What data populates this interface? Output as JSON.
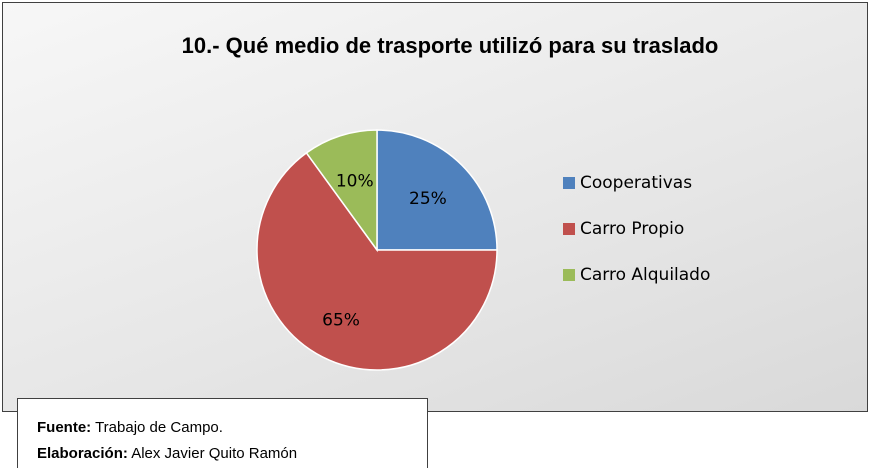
{
  "chart_data": {
    "type": "pie",
    "title": "10.- Qué medio de trasporte utilizó para su traslado",
    "categories": [
      "Cooperativas",
      "Carro Propio",
      "Carro Alquilado"
    ],
    "values": [
      25,
      65,
      10
    ],
    "value_labels": [
      "25%",
      "65%",
      "10%"
    ],
    "colors": [
      "#4f81bd",
      "#c0504d",
      "#9bbb59"
    ],
    "legend": "right"
  },
  "source": {
    "fuente_label": "Fuente:",
    "fuente_text": "Trabajo de Campo.",
    "elaboracion_label": "Elaboración:",
    "elaboracion_text": "Alex Javier Quito Ramón"
  }
}
